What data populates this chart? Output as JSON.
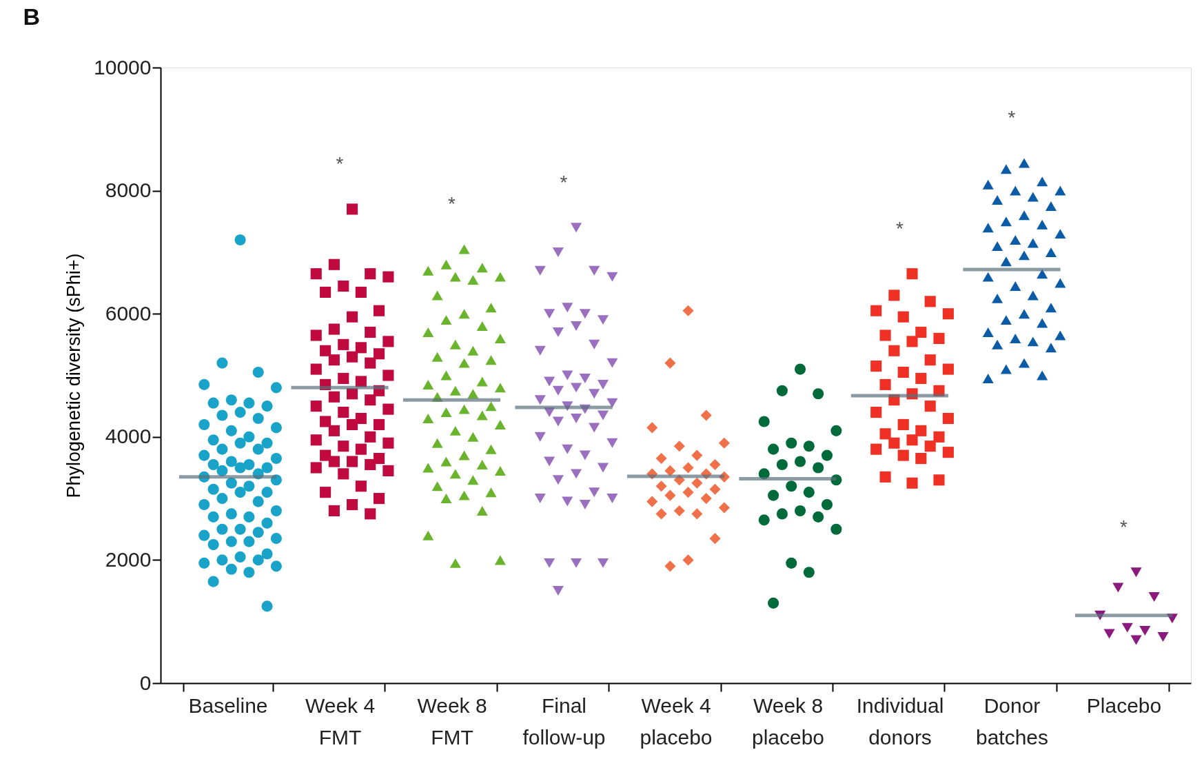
{
  "chart_data": {
    "type": "scatter",
    "title": "B",
    "ylabel": "Phylogenetic diversity (sPhi+)",
    "categories": [
      "Baseline",
      "Week 4 FMT",
      "Week 8 FMT",
      "Final follow-up",
      "Week 4 placebo",
      "Week 8 placebo",
      "Individual donors",
      "Donor batches",
      "Placebo"
    ],
    "ylim": [
      0,
      10000
    ],
    "yticks": [
      0,
      2000,
      4000,
      6000,
      8000,
      10000
    ],
    "grid": false,
    "series": [
      {
        "type": "scatter",
        "marker": "circle",
        "color": "#1aa3c8",
        "x": [
          "Baseline",
          "Baseline",
          "Baseline",
          "Baseline",
          "Baseline",
          "Baseline",
          "Baseline",
          "Baseline",
          "Baseline",
          "Baseline",
          "Baseline",
          "Baseline",
          "Baseline",
          "Baseline",
          "Baseline",
          "Baseline",
          "Baseline",
          "Baseline",
          "Baseline",
          "Baseline",
          "Baseline",
          "Baseline",
          "Baseline",
          "Baseline",
          "Baseline",
          "Baseline",
          "Baseline",
          "Baseline",
          "Baseline",
          "Baseline",
          "Baseline",
          "Baseline",
          "Baseline",
          "Baseline",
          "Baseline",
          "Baseline",
          "Baseline",
          "Baseline",
          "Baseline",
          "Baseline",
          "Baseline",
          "Baseline",
          "Baseline",
          "Baseline",
          "Baseline",
          "Baseline",
          "Baseline",
          "Baseline",
          "Baseline",
          "Baseline",
          "Baseline",
          "Baseline",
          "Baseline",
          "Baseline",
          "Baseline",
          "Baseline",
          "Baseline",
          "Baseline",
          "Baseline",
          "Baseline",
          "Baseline",
          "Baseline",
          "Baseline"
        ],
        "values": [
          7200,
          5200,
          5050,
          4850,
          4800,
          4600,
          4550,
          4550,
          4500,
          4400,
          4350,
          4300,
          4200,
          4150,
          4100,
          4000,
          3950,
          3900,
          3900,
          3800,
          3800,
          3700,
          3650,
          3600,
          3550,
          3550,
          3500,
          3500,
          3450,
          3400,
          3350,
          3300,
          3250,
          3200,
          3150,
          3100,
          3100,
          3000,
          2950,
          2900,
          2800,
          2750,
          2700,
          2700,
          2600,
          2500,
          2500,
          2450,
          2400,
          2350,
          2300,
          2300,
          2250,
          2100,
          2050,
          2000,
          2000,
          1950,
          1900,
          1850,
          1800,
          1650,
          1250
        ]
      },
      {
        "type": "scatter",
        "marker": "square",
        "color": "#c0093e",
        "x": [
          "Week 4 FMT",
          "Week 4 FMT",
          "Week 4 FMT",
          "Week 4 FMT",
          "Week 4 FMT",
          "Week 4 FMT",
          "Week 4 FMT",
          "Week 4 FMT",
          "Week 4 FMT",
          "Week 4 FMT",
          "Week 4 FMT",
          "Week 4 FMT",
          "Week 4 FMT",
          "Week 4 FMT",
          "Week 4 FMT",
          "Week 4 FMT",
          "Week 4 FMT",
          "Week 4 FMT",
          "Week 4 FMT",
          "Week 4 FMT",
          "Week 4 FMT",
          "Week 4 FMT",
          "Week 4 FMT",
          "Week 4 FMT",
          "Week 4 FMT",
          "Week 4 FMT",
          "Week 4 FMT",
          "Week 4 FMT",
          "Week 4 FMT",
          "Week 4 FMT",
          "Week 4 FMT",
          "Week 4 FMT",
          "Week 4 FMT",
          "Week 4 FMT",
          "Week 4 FMT",
          "Week 4 FMT",
          "Week 4 FMT",
          "Week 4 FMT",
          "Week 4 FMT",
          "Week 4 FMT",
          "Week 4 FMT",
          "Week 4 FMT",
          "Week 4 FMT",
          "Week 4 FMT",
          "Week 4 FMT",
          "Week 4 FMT",
          "Week 4 FMT",
          "Week 4 FMT",
          "Week 4 FMT",
          "Week 4 FMT",
          "Week 4 FMT",
          "Week 4 FMT",
          "Week 4 FMT",
          "Week 4 FMT",
          "Week 4 FMT",
          "Week 4 FMT",
          "Week 4 FMT"
        ],
        "values": [
          7700,
          6800,
          6650,
          6650,
          6600,
          6450,
          6350,
          6350,
          6050,
          5950,
          5750,
          5700,
          5650,
          5550,
          5500,
          5450,
          5400,
          5350,
          5300,
          5250,
          5200,
          5100,
          5000,
          4950,
          4900,
          4850,
          4750,
          4700,
          4650,
          4600,
          4500,
          4450,
          4400,
          4300,
          4250,
          4200,
          4200,
          4100,
          4000,
          3950,
          3900,
          3850,
          3800,
          3700,
          3650,
          3600,
          3600,
          3550,
          3500,
          3450,
          3400,
          3200,
          3100,
          3000,
          2900,
          2800,
          2750
        ]
      },
      {
        "type": "scatter",
        "marker": "triangle",
        "color": "#6ab42d",
        "x": [
          "Week 8 FMT",
          "Week 8 FMT",
          "Week 8 FMT",
          "Week 8 FMT",
          "Week 8 FMT",
          "Week 8 FMT",
          "Week 8 FMT",
          "Week 8 FMT",
          "Week 8 FMT",
          "Week 8 FMT",
          "Week 8 FMT",
          "Week 8 FMT",
          "Week 8 FMT",
          "Week 8 FMT",
          "Week 8 FMT",
          "Week 8 FMT",
          "Week 8 FMT",
          "Week 8 FMT",
          "Week 8 FMT",
          "Week 8 FMT",
          "Week 8 FMT",
          "Week 8 FMT",
          "Week 8 FMT",
          "Week 8 FMT",
          "Week 8 FMT",
          "Week 8 FMT",
          "Week 8 FMT",
          "Week 8 FMT",
          "Week 8 FMT",
          "Week 8 FMT",
          "Week 8 FMT",
          "Week 8 FMT",
          "Week 8 FMT",
          "Week 8 FMT",
          "Week 8 FMT",
          "Week 8 FMT",
          "Week 8 FMT",
          "Week 8 FMT",
          "Week 8 FMT",
          "Week 8 FMT",
          "Week 8 FMT",
          "Week 8 FMT",
          "Week 8 FMT",
          "Week 8 FMT",
          "Week 8 FMT",
          "Week 8 FMT",
          "Week 8 FMT",
          "Week 8 FMT",
          "Week 8 FMT",
          "Week 8 FMT",
          "Week 8 FMT"
        ],
        "values": [
          7050,
          6800,
          6750,
          6700,
          6600,
          6600,
          6550,
          6300,
          6100,
          6000,
          5900,
          5800,
          5700,
          5600,
          5500,
          5400,
          5300,
          5250,
          5200,
          5000,
          4900,
          4850,
          4800,
          4750,
          4700,
          4650,
          4500,
          4450,
          4400,
          4350,
          4300,
          4200,
          4100,
          4000,
          3900,
          3800,
          3700,
          3600,
          3550,
          3500,
          3450,
          3400,
          3300,
          3200,
          3100,
          3050,
          3000,
          2800,
          2400,
          2000,
          1950
        ]
      },
      {
        "type": "scatter",
        "marker": "triangle-down",
        "color": "#9a6fc0",
        "x": [
          "Final follow-up",
          "Final follow-up",
          "Final follow-up",
          "Final follow-up",
          "Final follow-up",
          "Final follow-up",
          "Final follow-up",
          "Final follow-up",
          "Final follow-up",
          "Final follow-up",
          "Final follow-up",
          "Final follow-up",
          "Final follow-up",
          "Final follow-up",
          "Final follow-up",
          "Final follow-up",
          "Final follow-up",
          "Final follow-up",
          "Final follow-up",
          "Final follow-up",
          "Final follow-up",
          "Final follow-up",
          "Final follow-up",
          "Final follow-up",
          "Final follow-up",
          "Final follow-up",
          "Final follow-up",
          "Final follow-up",
          "Final follow-up",
          "Final follow-up",
          "Final follow-up",
          "Final follow-up",
          "Final follow-up",
          "Final follow-up",
          "Final follow-up",
          "Final follow-up",
          "Final follow-up",
          "Final follow-up",
          "Final follow-up",
          "Final follow-up",
          "Final follow-up",
          "Final follow-up",
          "Final follow-up",
          "Final follow-up",
          "Final follow-up",
          "Final follow-up",
          "Final follow-up"
        ],
        "values": [
          7400,
          7000,
          6700,
          6700,
          6600,
          6100,
          6000,
          6000,
          5900,
          5800,
          5700,
          5500,
          5400,
          5200,
          5000,
          4950,
          4900,
          4850,
          4800,
          4750,
          4700,
          4600,
          4550,
          4500,
          4450,
          4400,
          4350,
          4300,
          4250,
          4150,
          4000,
          3900,
          3800,
          3700,
          3600,
          3500,
          3400,
          3300,
          3100,
          3000,
          3000,
          2950,
          2900,
          1950,
          1950,
          1950,
          1500
        ]
      },
      {
        "type": "scatter",
        "marker": "diamond",
        "color": "#f0704a",
        "x": [
          "Week 4 placebo",
          "Week 4 placebo",
          "Week 4 placebo",
          "Week 4 placebo",
          "Week 4 placebo",
          "Week 4 placebo",
          "Week 4 placebo",
          "Week 4 placebo",
          "Week 4 placebo",
          "Week 4 placebo",
          "Week 4 placebo",
          "Week 4 placebo",
          "Week 4 placebo",
          "Week 4 placebo",
          "Week 4 placebo",
          "Week 4 placebo",
          "Week 4 placebo",
          "Week 4 placebo",
          "Week 4 placebo",
          "Week 4 placebo",
          "Week 4 placebo",
          "Week 4 placebo",
          "Week 4 placebo",
          "Week 4 placebo",
          "Week 4 placebo",
          "Week 4 placebo",
          "Week 4 placebo",
          "Week 4 placebo",
          "Week 4 placebo"
        ],
        "values": [
          6050,
          5200,
          4350,
          4150,
          3900,
          3850,
          3700,
          3650,
          3550,
          3500,
          3450,
          3400,
          3400,
          3350,
          3300,
          3250,
          3200,
          3150,
          3100,
          3050,
          3000,
          2950,
          2850,
          2800,
          2750,
          2750,
          2350,
          2000,
          1900
        ]
      },
      {
        "type": "scatter",
        "marker": "circle",
        "color": "#006a3a",
        "x": [
          "Week 8 placebo",
          "Week 8 placebo",
          "Week 8 placebo",
          "Week 8 placebo",
          "Week 8 placebo",
          "Week 8 placebo",
          "Week 8 placebo",
          "Week 8 placebo",
          "Week 8 placebo",
          "Week 8 placebo",
          "Week 8 placebo",
          "Week 8 placebo",
          "Week 8 placebo",
          "Week 8 placebo",
          "Week 8 placebo",
          "Week 8 placebo",
          "Week 8 placebo",
          "Week 8 placebo",
          "Week 8 placebo",
          "Week 8 placebo",
          "Week 8 placebo",
          "Week 8 placebo",
          "Week 8 placebo",
          "Week 8 placebo",
          "Week 8 placebo",
          "Week 8 placebo"
        ],
        "values": [
          5100,
          4750,
          4700,
          4250,
          4100,
          3900,
          3850,
          3800,
          3700,
          3600,
          3550,
          3500,
          3400,
          3300,
          3200,
          3100,
          3050,
          2900,
          2800,
          2750,
          2700,
          2650,
          2500,
          1950,
          1800,
          1300
        ]
      },
      {
        "type": "scatter",
        "marker": "square",
        "color": "#ee3124",
        "x": [
          "Individual donors",
          "Individual donors",
          "Individual donors",
          "Individual donors",
          "Individual donors",
          "Individual donors",
          "Individual donors",
          "Individual donors",
          "Individual donors",
          "Individual donors",
          "Individual donors",
          "Individual donors",
          "Individual donors",
          "Individual donors",
          "Individual donors",
          "Individual donors",
          "Individual donors",
          "Individual donors",
          "Individual donors",
          "Individual donors",
          "Individual donors",
          "Individual donors",
          "Individual donors",
          "Individual donors",
          "Individual donors",
          "Individual donors",
          "Individual donors",
          "Individual donors",
          "Individual donors",
          "Individual donors",
          "Individual donors",
          "Individual donors",
          "Individual donors",
          "Individual donors",
          "Individual donors",
          "Individual donors",
          "Individual donors"
        ],
        "values": [
          6650,
          6300,
          6200,
          6050,
          6000,
          5950,
          5700,
          5650,
          5600,
          5550,
          5400,
          5250,
          5150,
          5100,
          5050,
          4950,
          4850,
          4750,
          4700,
          4600,
          4500,
          4400,
          4300,
          4200,
          4100,
          4050,
          4000,
          3950,
          3900,
          3850,
          3800,
          3750,
          3700,
          3650,
          3350,
          3300,
          3250
        ]
      },
      {
        "type": "scatter",
        "marker": "triangle",
        "color": "#0b5ba6",
        "x": [
          "Donor batches",
          "Donor batches",
          "Donor batches",
          "Donor batches",
          "Donor batches",
          "Donor batches",
          "Donor batches",
          "Donor batches",
          "Donor batches",
          "Donor batches",
          "Donor batches",
          "Donor batches",
          "Donor batches",
          "Donor batches",
          "Donor batches",
          "Donor batches",
          "Donor batches",
          "Donor batches",
          "Donor batches",
          "Donor batches",
          "Donor batches",
          "Donor batches",
          "Donor batches",
          "Donor batches",
          "Donor batches",
          "Donor batches",
          "Donor batches",
          "Donor batches",
          "Donor batches",
          "Donor batches",
          "Donor batches",
          "Donor batches",
          "Donor batches",
          "Donor batches",
          "Donor batches",
          "Donor batches",
          "Donor batches",
          "Donor batches",
          "Donor batches",
          "Donor batches"
        ],
        "values": [
          8450,
          8350,
          8150,
          8100,
          8000,
          8000,
          7900,
          7850,
          7750,
          7600,
          7500,
          7450,
          7400,
          7300,
          7200,
          7150,
          7100,
          7000,
          6950,
          6850,
          6650,
          6600,
          6500,
          6450,
          6300,
          6250,
          6100,
          6000,
          5900,
          5850,
          5700,
          5650,
          5600,
          5550,
          5500,
          5450,
          5200,
          5100,
          5000,
          4950
        ]
      },
      {
        "type": "scatter",
        "marker": "triangle-down",
        "color": "#8b1a7e",
        "x": [
          "Placebo",
          "Placebo",
          "Placebo",
          "Placebo",
          "Placebo",
          "Placebo",
          "Placebo",
          "Placebo",
          "Placebo",
          "Placebo"
        ],
        "values": [
          1800,
          1550,
          1400,
          1100,
          1050,
          900,
          850,
          800,
          750,
          700
        ]
      },
      {
        "type": "box",
        "color": "#5a6f7c",
        "boxes": [
          {
            "low": 3350,
            "q1": 3350,
            "median": 3350,
            "q3": 3350,
            "high": 3350
          },
          {
            "low": 4800,
            "q1": 4800,
            "median": 4800,
            "q3": 4800,
            "high": 4800
          },
          {
            "low": 4600,
            "q1": 4600,
            "median": 4600,
            "q3": 4600,
            "high": 4600
          },
          {
            "low": 4480,
            "q1": 4480,
            "median": 4480,
            "q3": 4480,
            "high": 4480
          },
          {
            "low": 3360,
            "q1": 3360,
            "median": 3360,
            "q3": 3360,
            "high": 3360
          },
          {
            "low": 3320,
            "q1": 3320,
            "median": 3320,
            "q3": 3320,
            "high": 3320
          },
          {
            "low": 4670,
            "q1": 4670,
            "median": 4670,
            "q3": 4670,
            "high": 4670
          },
          {
            "low": 6720,
            "q1": 6720,
            "median": 6720,
            "q3": 6720,
            "high": 6720
          },
          {
            "low": 1100,
            "q1": 1100,
            "median": 1100,
            "q3": 1100,
            "high": 1100
          }
        ]
      }
    ],
    "annotations": [
      null,
      "*",
      "*",
      "*",
      null,
      null,
      "*",
      "*",
      "*"
    ]
  }
}
